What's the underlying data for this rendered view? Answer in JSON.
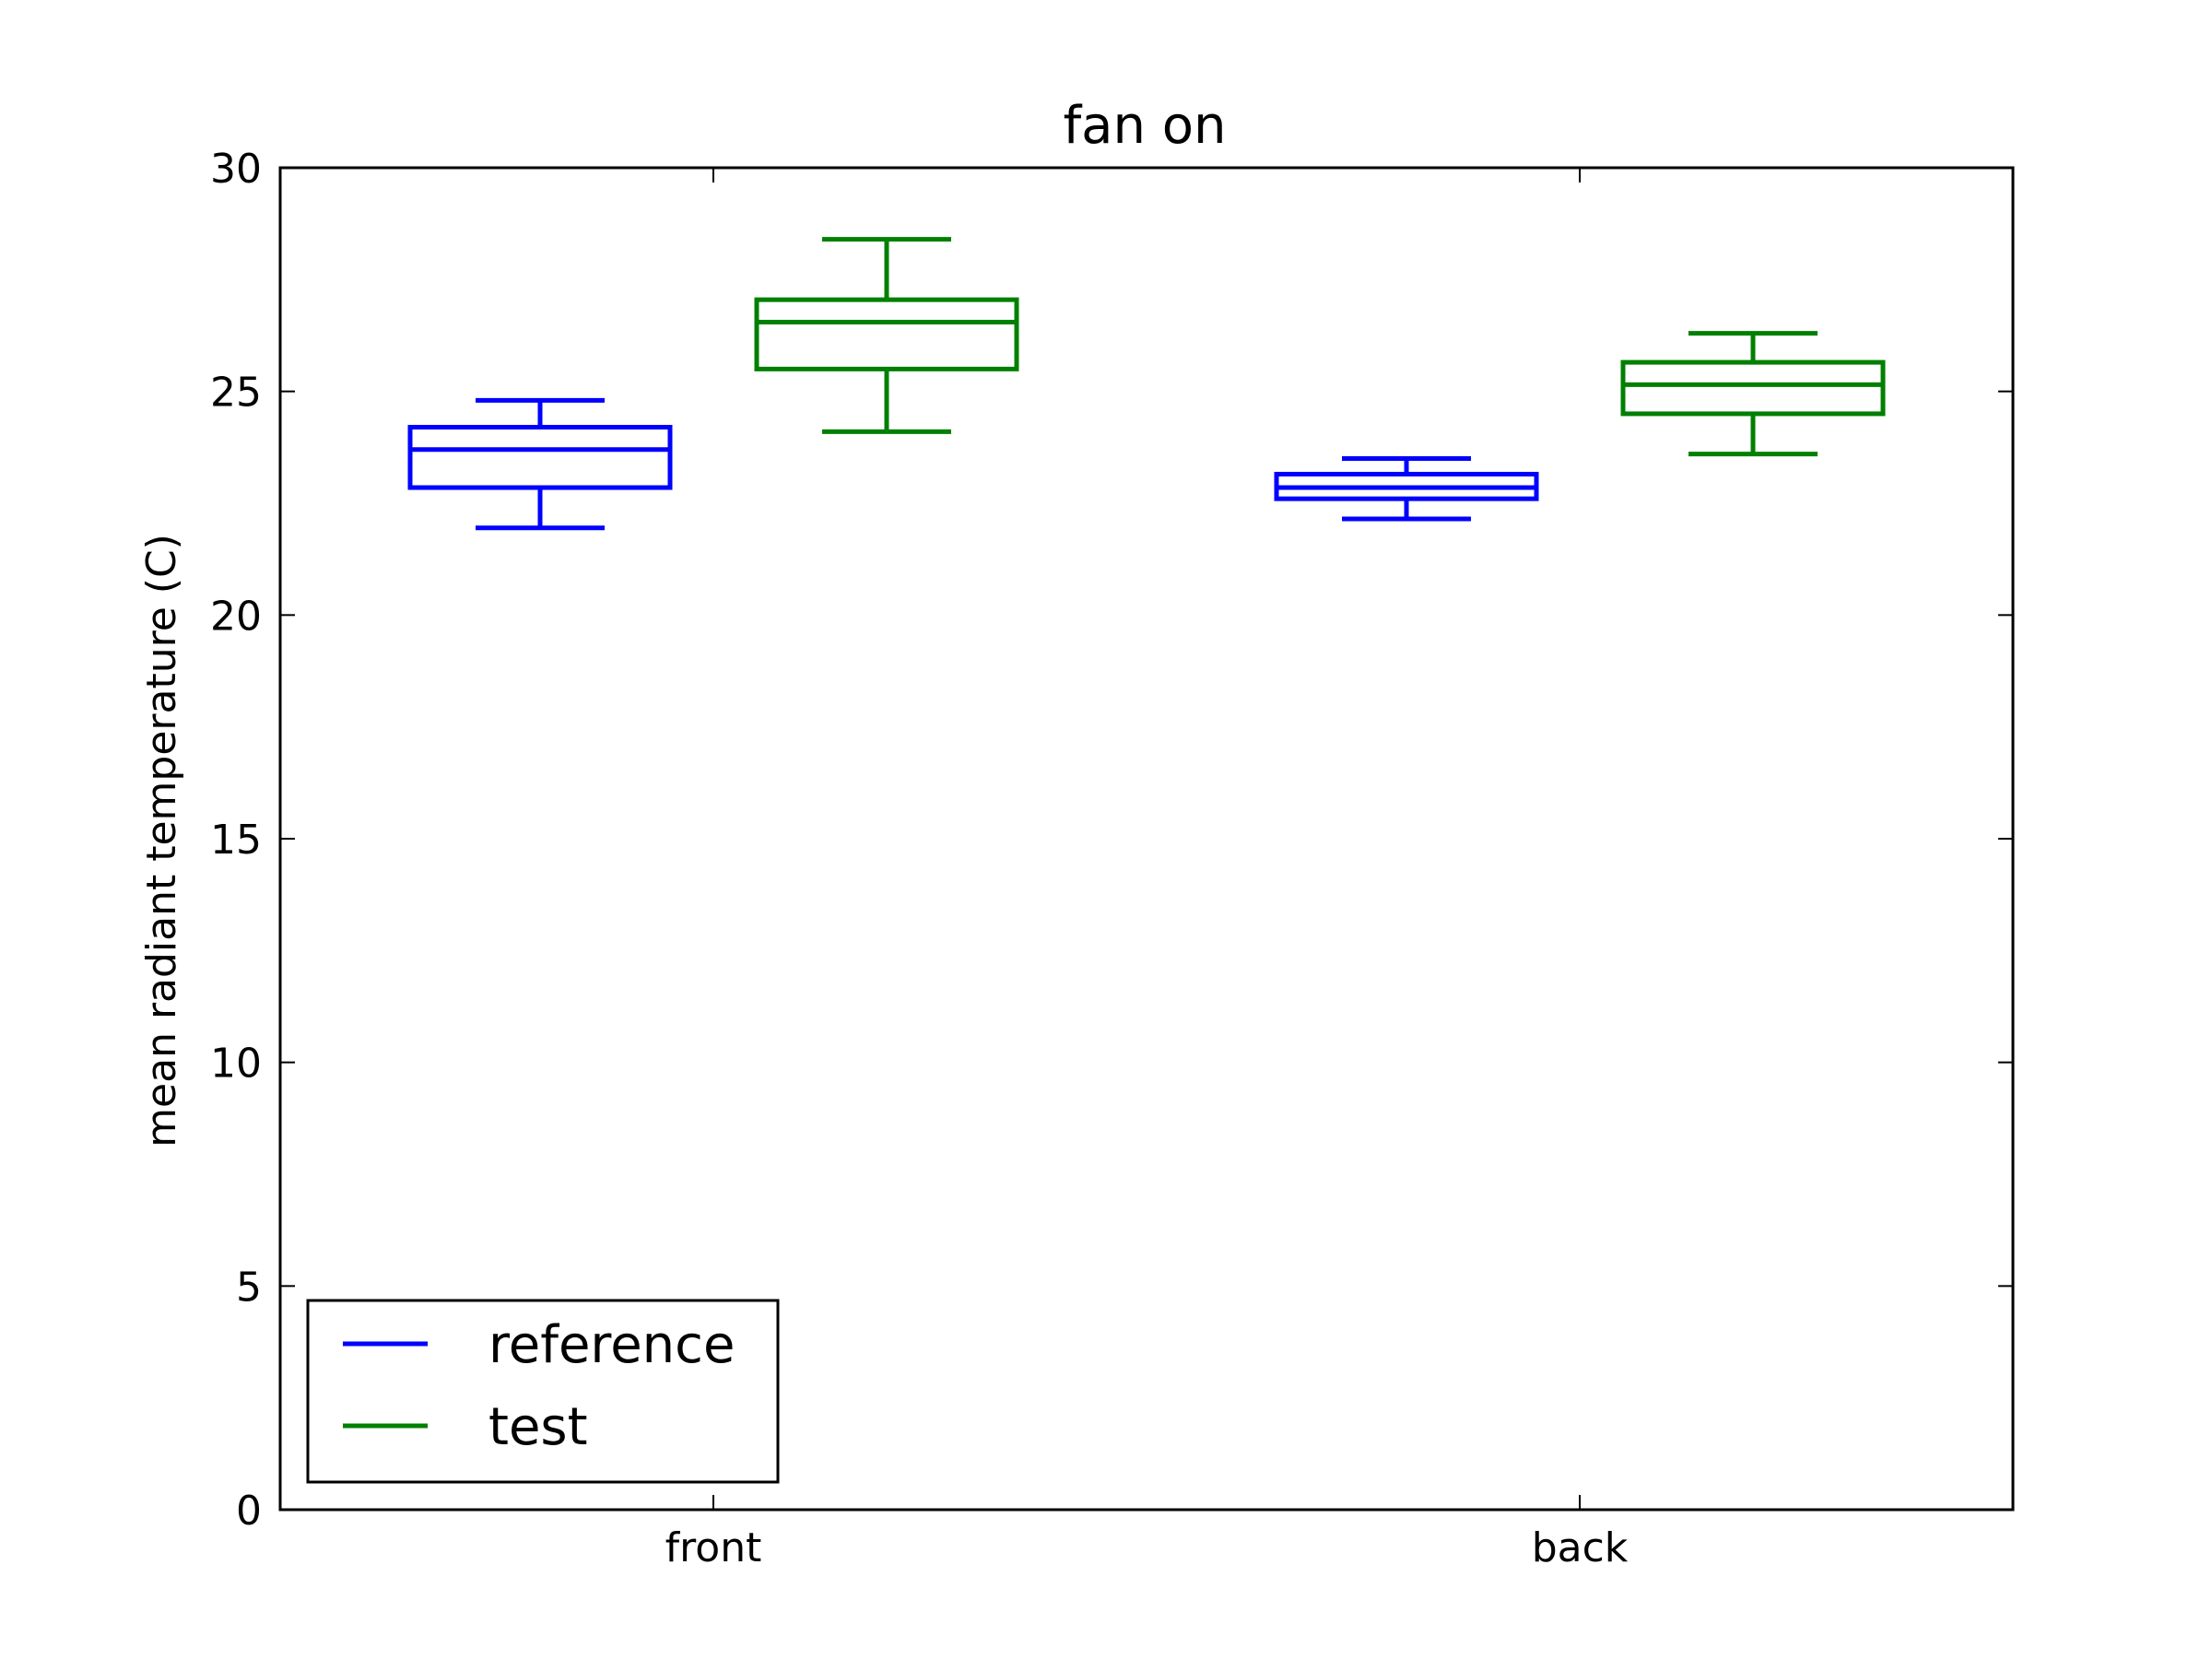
{
  "chart_data": {
    "type": "box",
    "title": "fan on",
    "xlabel": "",
    "ylabel": "mean radiant temperature (C)",
    "ylim": [
      0,
      30
    ],
    "yticks": [
      0,
      5,
      10,
      15,
      20,
      25,
      30
    ],
    "categories": [
      "front",
      "back"
    ],
    "grid": false,
    "legend_position": "lower-left",
    "series": [
      {
        "name": "reference",
        "color": "#0000ff",
        "boxes": [
          {
            "category": "front",
            "whisker_low": 21.95,
            "q1": 22.85,
            "median": 23.7,
            "q3": 24.2,
            "whisker_high": 24.8
          },
          {
            "category": "back",
            "whisker_low": 22.15,
            "q1": 22.6,
            "median": 22.85,
            "q3": 23.15,
            "whisker_high": 23.5
          }
        ]
      },
      {
        "name": "test",
        "color": "#008000",
        "boxes": [
          {
            "category": "front",
            "whisker_low": 24.1,
            "q1": 25.5,
            "median": 26.55,
            "q3": 27.05,
            "whisker_high": 28.4
          },
          {
            "category": "back",
            "whisker_low": 23.6,
            "q1": 24.5,
            "median": 25.15,
            "q3": 25.65,
            "whisker_high": 26.3
          }
        ]
      }
    ]
  }
}
